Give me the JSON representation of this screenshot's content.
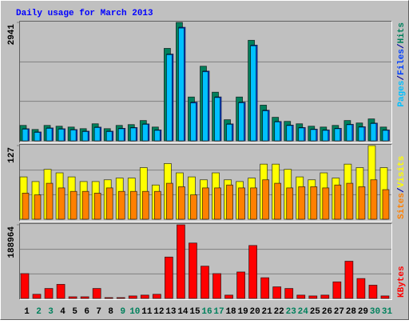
{
  "title": "Daily usage for March 2013",
  "legend_separator": "/",
  "chart_data": [
    {
      "type": "bar",
      "series": [
        {
          "name": "Pages",
          "color": "#00c0ff",
          "values": [
            290,
            210,
            310,
            290,
            270,
            230,
            330,
            230,
            300,
            320,
            410,
            260,
            2140,
            2800,
            940,
            1715,
            1075,
            410,
            945,
            2360,
            745,
            470,
            380,
            320,
            280,
            260,
            300,
            400,
            340,
            430,
            260
          ]
        },
        {
          "name": "Files",
          "color": "#0040ff",
          "values": [
            300,
            220,
            320,
            300,
            280,
            240,
            340,
            240,
            310,
            330,
            420,
            270,
            2155,
            2820,
            960,
            1732,
            1090,
            420,
            960,
            2377,
            760,
            480,
            390,
            330,
            290,
            270,
            310,
            410,
            350,
            440,
            270
          ]
        },
        {
          "name": "Hits",
          "color": "#00805c",
          "values": [
            383,
            282,
            383,
            363,
            342,
            302,
            423,
            302,
            383,
            403,
            504,
            342,
            2296,
            2941,
            1088,
            1853,
            1208,
            524,
            1088,
            2497,
            886,
            584,
            483,
            423,
            363,
            342,
            383,
            504,
            443,
            544,
            342
          ]
        }
      ],
      "ylim": [
        0,
        2941
      ],
      "yticks": [
        2941
      ]
    },
    {
      "type": "bar",
      "series": [
        {
          "name": "Sites",
          "color": "#ff8000",
          "values": [
            45,
            42,
            62,
            54,
            48,
            48,
            45,
            54,
            48,
            48,
            48,
            48,
            62,
            56,
            42,
            54,
            54,
            59,
            54,
            54,
            68,
            62,
            54,
            56,
            56,
            54,
            59,
            62,
            56,
            68,
            51
          ]
        },
        {
          "name": "Visits",
          "color": "#ffff00",
          "values": [
            73,
            65,
            86,
            80,
            73,
            65,
            65,
            68,
            71,
            71,
            89,
            59,
            96,
            80,
            73,
            68,
            80,
            68,
            65,
            71,
            95,
            95,
            86,
            73,
            68,
            80,
            71,
            95,
            89,
            127,
            89
          ]
        }
      ],
      "ylim": [
        0,
        127
      ],
      "yticks": [
        127
      ]
    },
    {
      "type": "bar",
      "categories": [
        "1",
        "2",
        "3",
        "4",
        "5",
        "6",
        "7",
        "8",
        "9",
        "10",
        "11",
        "12",
        "13",
        "14",
        "15",
        "16",
        "17",
        "18",
        "19",
        "20",
        "21",
        "22",
        "23",
        "24",
        "25",
        "26",
        "27",
        "28",
        "29",
        "30",
        "31"
      ],
      "category_colors": [
        "#000000",
        "#00805c",
        "#00805c",
        "#000000",
        "#000000",
        "#000000",
        "#000000",
        "#000000",
        "#00805c",
        "#00805c",
        "#000000",
        "#000000",
        "#000000",
        "#000000",
        "#000000",
        "#00805c",
        "#00805c",
        "#000000",
        "#000000",
        "#000000",
        "#000000",
        "#000000",
        "#00805c",
        "#00805c",
        "#000000",
        "#000000",
        "#000000",
        "#000000",
        "#000000",
        "#00805c",
        "#00805c"
      ],
      "series": [
        {
          "name": "KBytes",
          "color": "#ff0000",
          "values": [
            63700,
            10600,
            25500,
            36100,
            4200,
            4200,
            25500,
            2100,
            2100,
            6400,
            8500,
            10600,
            106200,
            188964,
            142200,
            82800,
            63700,
            8500,
            67900,
            135900,
            53100,
            29700,
            25500,
            8500,
            6400,
            8500,
            42500,
            95500,
            51000,
            34000,
            6400
          ]
        }
      ],
      "ylim": [
        0,
        188964
      ],
      "yticks": [
        188964
      ]
    }
  ]
}
